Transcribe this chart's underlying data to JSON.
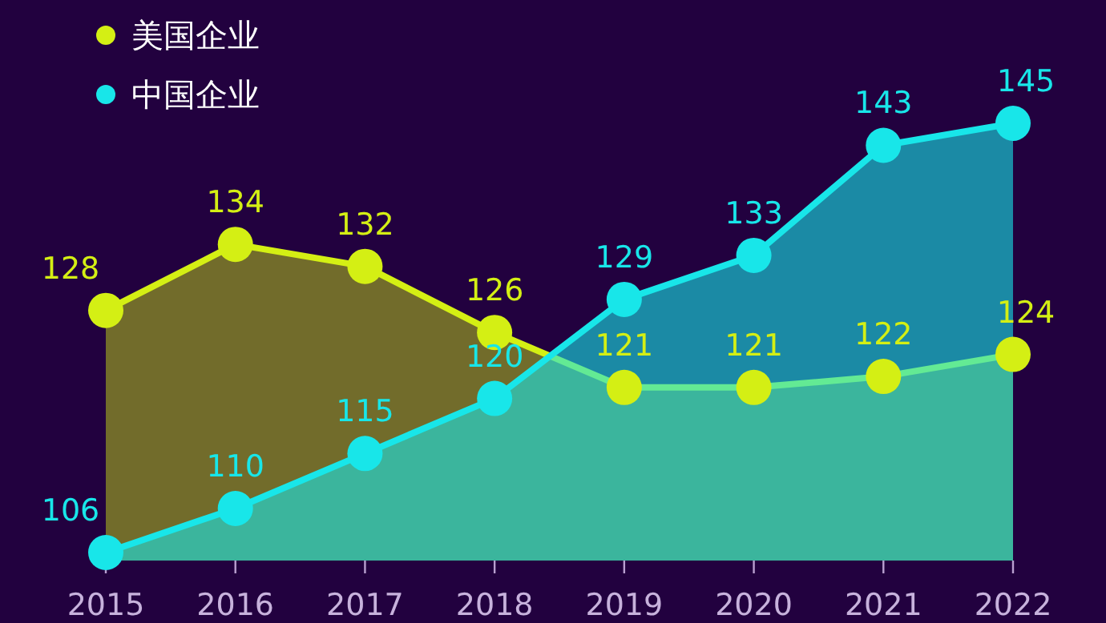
{
  "chart_data": {
    "type": "area",
    "categories": [
      "2015",
      "2016",
      "2017",
      "2018",
      "2019",
      "2020",
      "2021",
      "2022"
    ],
    "series": [
      {
        "name": "美国企业",
        "type": "area",
        "color": "#d4ef14",
        "values": [
          128,
          134,
          132,
          126,
          121,
          121,
          122,
          124
        ]
      },
      {
        "name": "中国企业",
        "type": "area",
        "color": "#18e6e9",
        "values": [
          106,
          110,
          115,
          120,
          129,
          133,
          143,
          145
        ]
      }
    ],
    "data_labels": true,
    "marker": "circle",
    "legend": "top left",
    "grid": false
  }
}
